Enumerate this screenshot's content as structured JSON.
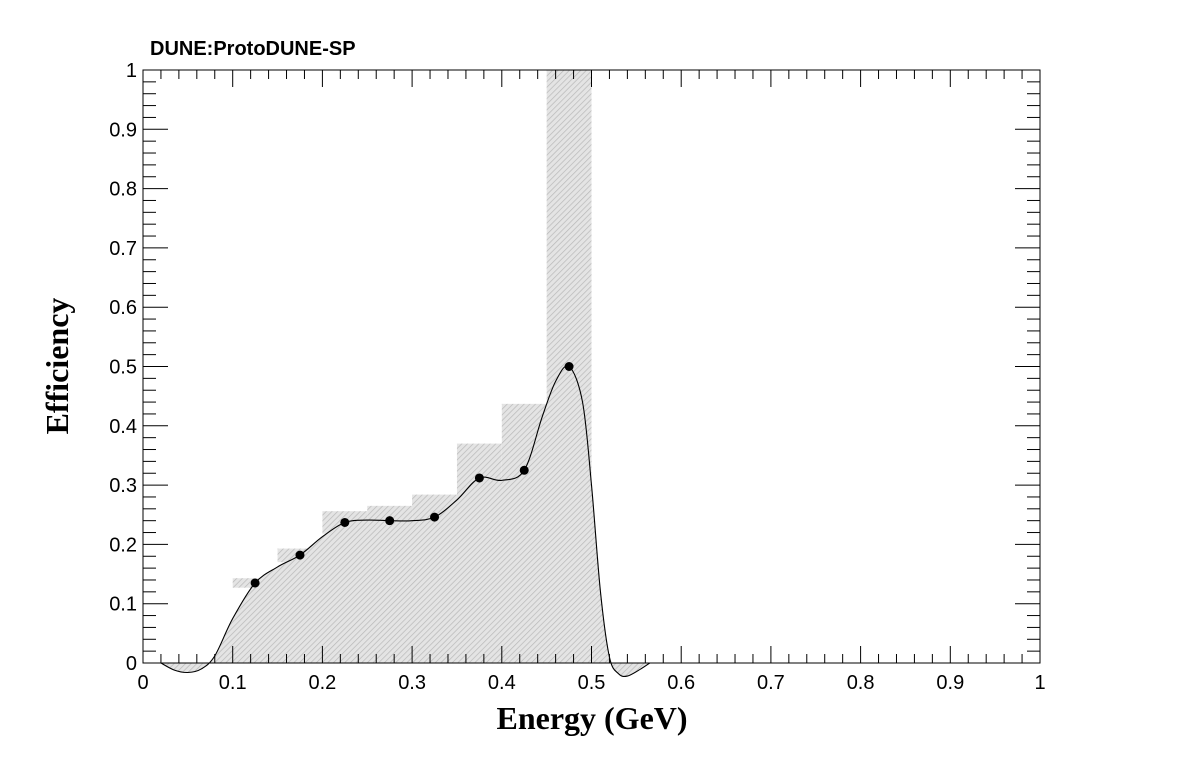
{
  "chart_data": {
    "type": "scatter",
    "title": "DUNE:ProtoDUNE-SP",
    "xlabel": "Energy (GeV)",
    "ylabel": "Efficiency",
    "xlim": [
      0,
      1
    ],
    "ylim": [
      0,
      1
    ],
    "x_tick_labels": [
      "0",
      "0.1",
      "0.2",
      "0.3",
      "0.4",
      "0.5",
      "0.6",
      "0.7",
      "0.8",
      "0.9",
      "1"
    ],
    "y_tick_labels": [
      "0",
      "0.1",
      "0.2",
      "0.3",
      "0.4",
      "0.5",
      "0.6",
      "0.7",
      "0.8",
      "0.9",
      "1"
    ],
    "grid": false,
    "points": [
      {
        "x": 0.125,
        "y": 0.135
      },
      {
        "x": 0.175,
        "y": 0.182
      },
      {
        "x": 0.225,
        "y": 0.237
      },
      {
        "x": 0.275,
        "y": 0.24
      },
      {
        "x": 0.325,
        "y": 0.246
      },
      {
        "x": 0.375,
        "y": 0.312
      },
      {
        "x": 0.425,
        "y": 0.325
      },
      {
        "x": 0.475,
        "y": 0.5
      }
    ],
    "error_bands": [
      {
        "x0": 0.1,
        "x1": 0.15,
        "ylow": 0.127,
        "yhigh": 0.143
      },
      {
        "x0": 0.15,
        "x1": 0.2,
        "ylow": 0.17,
        "yhigh": 0.193
      },
      {
        "x0": 0.2,
        "x1": 0.25,
        "ylow": 0.218,
        "yhigh": 0.256
      },
      {
        "x0": 0.25,
        "x1": 0.3,
        "ylow": 0.215,
        "yhigh": 0.265
      },
      {
        "x0": 0.3,
        "x1": 0.35,
        "ylow": 0.213,
        "yhigh": 0.284
      },
      {
        "x0": 0.35,
        "x1": 0.4,
        "ylow": 0.255,
        "yhigh": 0.37
      },
      {
        "x0": 0.4,
        "x1": 0.45,
        "ylow": 0.213,
        "yhigh": 0.437
      },
      {
        "x0": 0.45,
        "x1": 0.5,
        "ylow": 0.0,
        "yhigh": 1.0
      }
    ],
    "smooth_curve": [
      [
        0.02,
        0.0
      ],
      [
        0.035,
        -0.012
      ],
      [
        0.05,
        -0.016
      ],
      [
        0.065,
        -0.01
      ],
      [
        0.08,
        0.012
      ],
      [
        0.1,
        0.075
      ],
      [
        0.125,
        0.135
      ],
      [
        0.15,
        0.162
      ],
      [
        0.175,
        0.182
      ],
      [
        0.2,
        0.213
      ],
      [
        0.225,
        0.237
      ],
      [
        0.25,
        0.241
      ],
      [
        0.275,
        0.24
      ],
      [
        0.3,
        0.24
      ],
      [
        0.325,
        0.246
      ],
      [
        0.35,
        0.275
      ],
      [
        0.375,
        0.312
      ],
      [
        0.4,
        0.308
      ],
      [
        0.425,
        0.325
      ],
      [
        0.445,
        0.415
      ],
      [
        0.46,
        0.475
      ],
      [
        0.475,
        0.5
      ],
      [
        0.49,
        0.44
      ],
      [
        0.5,
        0.3
      ],
      [
        0.51,
        0.12
      ],
      [
        0.52,
        0.01
      ],
      [
        0.53,
        -0.018
      ],
      [
        0.54,
        -0.022
      ],
      [
        0.555,
        -0.01
      ],
      [
        0.565,
        0.0
      ]
    ]
  }
}
